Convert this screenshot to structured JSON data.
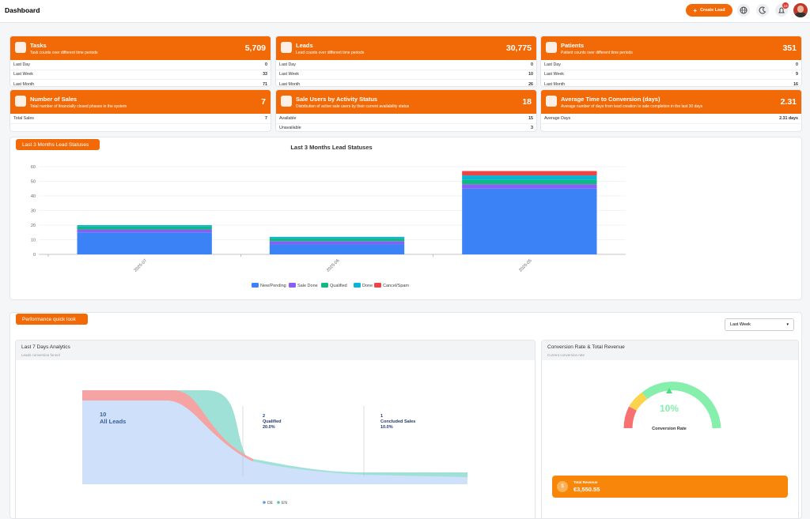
{
  "header": {
    "title": "Dashboard",
    "create_button": "Create Lead",
    "notification_count": 10
  },
  "cards": [
    {
      "title": "Tasks",
      "subtitle": "Task counts over different time periods",
      "total": "5,709",
      "rows": [
        {
          "label": "Last Day",
          "value": 0
        },
        {
          "label": "Last Week",
          "value": 33
        },
        {
          "label": "Last Month",
          "value": 71
        }
      ]
    },
    {
      "title": "Leads",
      "subtitle": "Lead counts over different time periods",
      "total": "30,775",
      "rows": [
        {
          "label": "Last Day",
          "value": 0
        },
        {
          "label": "Last Week",
          "value": 10
        },
        {
          "label": "Last Month",
          "value": 26
        }
      ]
    },
    {
      "title": "Patients",
      "subtitle": "Patient counts over different time periods",
      "total": 351,
      "rows": [
        {
          "label": "Last Day",
          "value": 0
        },
        {
          "label": "Last Week",
          "value": 9
        },
        {
          "label": "Last Month",
          "value": 16
        }
      ]
    },
    {
      "title": "Number of Sales",
      "subtitle": "Total number of financially closed phases in the system",
      "total": 7,
      "rows": [
        {
          "label": "Total Sales",
          "value": 7
        }
      ]
    },
    {
      "title": "Sale Users by Activity Status",
      "subtitle": "Distribution of active sale users by their current availability status",
      "total": 18,
      "rows": [
        {
          "label": "Available",
          "value": 15
        },
        {
          "label": "Unavailable",
          "value": 3
        }
      ]
    },
    {
      "title": "Average Time to Conversion (days)",
      "subtitle": "Average number of days from lead creation to sale completion in the last 30 days",
      "total": 2.31,
      "rows": [
        {
          "label": "Average Days",
          "value": "2.31 days"
        }
      ]
    }
  ],
  "lead_panel": {
    "tab": "Last 3 Months Lead Statuses"
  },
  "chart_data": {
    "type": "stacked_bar",
    "title": "Last 3 Months Lead Statuses",
    "categories": [
      "2025-07",
      "2025-06",
      "2025-05"
    ],
    "series": [
      {
        "name": "New/Pending",
        "color": "#3b82f6",
        "values": [
          15,
          7,
          45
        ]
      },
      {
        "name": "Sale Done",
        "color": "#8b5cf6",
        "values": [
          2,
          2,
          3
        ]
      },
      {
        "name": "Qualified",
        "color": "#10b981",
        "values": [
          2,
          2,
          3
        ]
      },
      {
        "name": "Done",
        "color": "#06b6d4",
        "values": [
          1,
          1,
          3
        ]
      },
      {
        "name": "Cancel/Spam",
        "color": "#ef4444",
        "values": [
          0,
          0,
          3
        ]
      }
    ],
    "ylim": [
      0,
      60
    ],
    "yticks": [
      0,
      10,
      20,
      30,
      40,
      50,
      60
    ],
    "grid": true,
    "legend": "bottom"
  },
  "performance": {
    "tab": "Performance quick look",
    "period": "Last Week",
    "analytics": {
      "title": "Last 7 Days Analytics",
      "subtitle": "Leads conversion funnel",
      "stages": [
        {
          "count": 10,
          "label": "All Leads"
        },
        {
          "count": 2,
          "label": "Qualified",
          "percent": "20.0%"
        },
        {
          "count": 1,
          "label": "Concluded Sales",
          "percent": "10.0%"
        }
      ],
      "legend": [
        "DE",
        "EN"
      ]
    },
    "conversion": {
      "title": "Conversion Rate & Total Revenue",
      "subtitle": "Current conversion rate",
      "rate": "10%",
      "rate_label": "Conversion Rate",
      "revenue_label": "Total Revenue",
      "revenue": "€3,550.55"
    }
  }
}
